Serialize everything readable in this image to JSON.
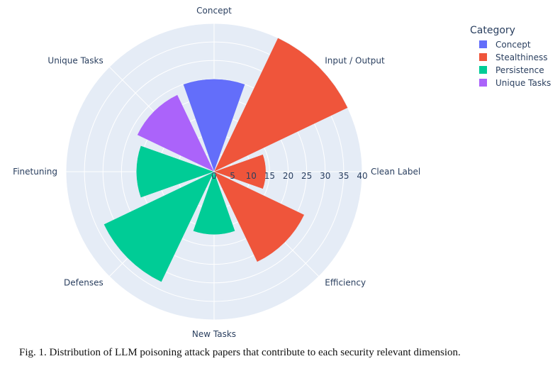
{
  "chart_data": {
    "type": "polar-bar",
    "title": "",
    "radial_axis": {
      "range": [
        0,
        40
      ],
      "ticks": [
        0,
        5,
        10,
        15,
        20,
        25,
        30,
        35,
        40
      ]
    },
    "categories": [
      "Concept",
      "Input / Output",
      "Clean Label",
      "Efficiency",
      "New Tasks",
      "Defenses",
      "Finetuning",
      "Unique Tasks"
    ],
    "values": [
      25,
      40,
      14,
      27,
      17,
      33,
      21,
      23
    ],
    "series_of_category": [
      "Concept",
      "Stealthiness",
      "Stealthiness",
      "Stealthiness",
      "Persistence",
      "Persistence",
      "Persistence",
      "Unique Tasks"
    ],
    "legend": {
      "title": "Category",
      "position": "top-right",
      "entries": [
        {
          "name": "Concept",
          "color": "#636efa"
        },
        {
          "name": "Stealthiness",
          "color": "#ef553b"
        },
        {
          "name": "Persistence",
          "color": "#00cc96"
        },
        {
          "name": "Unique Tasks",
          "color": "#ab63fa"
        }
      ]
    },
    "colors": {
      "plot_bg": "#e5ecf6",
      "grid": "#ffffff",
      "text": "#2a3f5f"
    }
  },
  "caption": "Fig. 1.  Distribution of LLM poisoning attack papers that contribute to each security relevant dimension."
}
